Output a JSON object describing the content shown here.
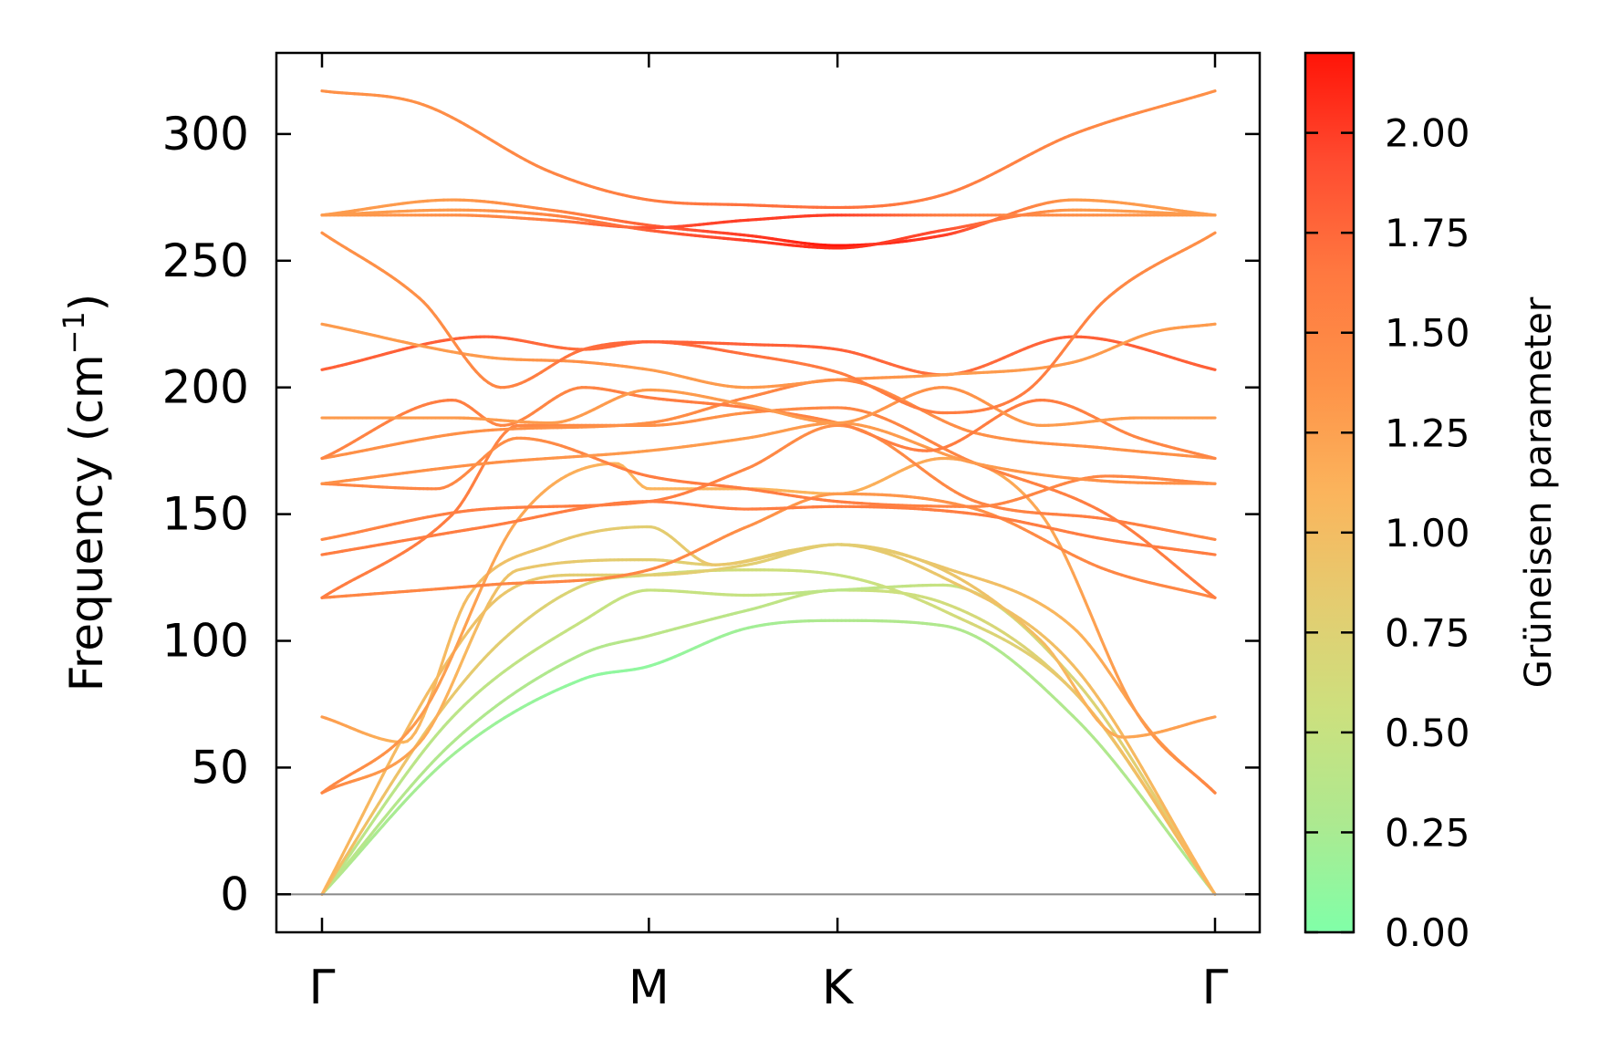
{
  "chart_data": {
    "type": "line",
    "title": "",
    "ylabel": "Frequency (cm⁻¹)",
    "ylabel_parts": {
      "main": "Frequency (cm",
      "sup": "−1",
      "close": ")"
    },
    "xlabel": "",
    "ylim": [
      -15,
      332
    ],
    "yticks": [
      0,
      50,
      100,
      150,
      200,
      250,
      300
    ],
    "kpath": [
      {
        "label": "Γ",
        "x": 0
      },
      {
        "label": "M",
        "x": 1
      },
      {
        "label": "K",
        "x": 1.577
      },
      {
        "label": "Γ",
        "x": 2.732
      }
    ],
    "zero_line": true,
    "colorbar": {
      "label": "Grüneisen parameter",
      "range": [
        0,
        2.2
      ],
      "ticks": [
        0.0,
        0.25,
        0.5,
        0.75,
        1.0,
        1.25,
        1.5,
        1.75,
        2.0
      ],
      "tick_labels": [
        "0.00",
        "0.25",
        "0.50",
        "0.75",
        "1.00",
        "1.25",
        "1.50",
        "1.75",
        "2.00"
      ],
      "colormap": [
        "#80ffa8",
        "#ade990",
        "#cce07e",
        "#e4cc70",
        "#fbb45c",
        "#fe9248",
        "#ff7840",
        "#ff4c30",
        "#ff1408"
      ]
    },
    "bands": [
      {
        "x": [
          0,
          0.4,
          0.8,
          1.0,
          1.3,
          1.577,
          1.9,
          2.3,
          2.732
        ],
        "y": [
          0,
          55,
          85,
          90,
          105,
          108,
          106,
          70,
          0
        ],
        "g": [
          0.3,
          0.2,
          0.1,
          0.1,
          0.2,
          0.3,
          0.3,
          0.3,
          0.3
        ]
      },
      {
        "x": [
          0,
          0.4,
          0.8,
          1.0,
          1.3,
          1.577,
          1.9,
          2.3,
          2.732
        ],
        "y": [
          0,
          60,
          95,
          102,
          112,
          120,
          115,
          80,
          0
        ],
        "g": [
          0.4,
          0.3,
          0.3,
          0.4,
          0.4,
          0.5,
          0.6,
          0.8,
          0.9
        ]
      },
      {
        "x": [
          0,
          0.4,
          0.8,
          1.0,
          1.3,
          1.577,
          1.9,
          2.3,
          2.732
        ],
        "y": [
          0,
          70,
          108,
          120,
          118,
          120,
          122,
          85,
          0
        ],
        "g": [
          0.4,
          0.4,
          0.5,
          0.5,
          0.5,
          0.4,
          0.5,
          0.7,
          0.9
        ]
      },
      {
        "x": [
          0,
          0.35,
          0.55,
          0.8,
          1.0,
          1.3,
          1.577,
          1.9,
          2.3,
          2.732
        ],
        "y": [
          0,
          70,
          100,
          122,
          126,
          128,
          126,
          112,
          80,
          0
        ],
        "g": [
          1.0,
          0.9,
          0.8,
          0.7,
          0.6,
          0.6,
          0.5,
          0.6,
          0.9,
          1.1
        ]
      },
      {
        "x": [
          0,
          0.35,
          0.55,
          0.8,
          1.0,
          1.3,
          1.577,
          1.9,
          2.3,
          2.732
        ],
        "y": [
          0,
          85,
          118,
          126,
          126,
          130,
          138,
          125,
          90,
          0
        ],
        "g": [
          1.1,
          1.0,
          0.9,
          0.8,
          0.8,
          0.8,
          0.8,
          0.9,
          1.0,
          1.1
        ]
      },
      {
        "x": [
          0,
          0.3,
          0.6,
          1.0,
          1.2,
          1.45,
          1.577,
          1.9,
          2.3,
          2.55,
          2.732
        ],
        "y": [
          40,
          60,
          128,
          132,
          130,
          136,
          138,
          129,
          105,
          62,
          40
        ],
        "g": [
          1.5,
          1.2,
          0.9,
          0.8,
          0.8,
          0.8,
          0.8,
          0.9,
          1.1,
          1.3,
          1.5
        ]
      },
      {
        "x": [
          0,
          0.25,
          0.45,
          0.7,
          1.0,
          1.2,
          1.577,
          1.9,
          2.2,
          2.45,
          2.732
        ],
        "y": [
          70,
          60,
          118,
          138,
          145,
          130,
          138,
          128,
          100,
          62,
          70
        ],
        "g": [
          1.3,
          1.1,
          1.0,
          0.9,
          0.8,
          0.9,
          0.8,
          0.9,
          1.0,
          1.2,
          1.3
        ]
      },
      {
        "x": [
          0,
          0.3,
          0.6,
          0.9,
          1.0,
          1.3,
          1.577,
          1.9,
          2.2,
          2.5,
          2.732
        ],
        "y": [
          40,
          70,
          148,
          170,
          160,
          160,
          158,
          172,
          150,
          70,
          40
        ],
        "g": [
          1.5,
          1.3,
          1.2,
          1.1,
          1.1,
          1.1,
          1.1,
          1.2,
          1.2,
          1.3,
          1.5
        ]
      },
      {
        "x": [
          0,
          0.5,
          1.0,
          1.3,
          1.577,
          2.0,
          2.4,
          2.732
        ],
        "y": [
          117,
          122,
          128,
          145,
          158,
          152,
          128,
          117
        ],
        "g": [
          1.5,
          1.5,
          1.5,
          1.4,
          1.3,
          1.4,
          1.5,
          1.5
        ]
      },
      {
        "x": [
          0,
          0.4,
          0.6,
          1.0,
          1.3,
          1.577,
          2.0,
          2.4,
          2.732
        ],
        "y": [
          117,
          150,
          185,
          185,
          190,
          192,
          170,
          150,
          117
        ],
        "g": [
          1.6,
          1.6,
          1.5,
          1.4,
          1.4,
          1.5,
          1.5,
          1.6,
          1.6
        ]
      },
      {
        "x": [
          0,
          0.5,
          1.0,
          1.3,
          1.577,
          2.0,
          2.4,
          2.732
        ],
        "y": [
          134,
          145,
          155,
          152,
          153,
          150,
          140,
          134
        ],
        "g": [
          1.6,
          1.6,
          1.6,
          1.6,
          1.6,
          1.6,
          1.6,
          1.6
        ]
      },
      {
        "x": [
          0,
          0.5,
          1.0,
          1.3,
          1.577,
          2.0,
          2.4,
          2.732
        ],
        "y": [
          140,
          152,
          155,
          168,
          185,
          155,
          148,
          140
        ],
        "g": [
          1.5,
          1.6,
          1.6,
          1.5,
          1.4,
          1.5,
          1.6,
          1.5
        ]
      },
      {
        "x": [
          0,
          0.35,
          0.6,
          1.0,
          1.3,
          1.577,
          2.0,
          2.4,
          2.732
        ],
        "y": [
          162,
          160,
          180,
          165,
          160,
          155,
          153,
          165,
          162
        ],
        "g": [
          1.5,
          1.5,
          1.4,
          1.6,
          1.6,
          1.6,
          1.5,
          1.5,
          1.5
        ]
      },
      {
        "x": [
          0,
          0.5,
          1.0,
          1.3,
          1.577,
          2.0,
          2.4,
          2.732
        ],
        "y": [
          162,
          170,
          175,
          180,
          186,
          170,
          163,
          162
        ],
        "g": [
          1.4,
          1.4,
          1.3,
          1.3,
          1.3,
          1.3,
          1.4,
          1.4
        ]
      },
      {
        "x": [
          0,
          0.5,
          1.0,
          1.3,
          1.577,
          2.0,
          2.4,
          2.732
        ],
        "y": [
          172,
          183,
          186,
          196,
          203,
          182,
          176,
          172
        ],
        "g": [
          1.4,
          1.4,
          1.4,
          1.5,
          1.5,
          1.4,
          1.4,
          1.4
        ]
      },
      {
        "x": [
          0,
          0.4,
          0.55,
          0.8,
          1.0,
          1.3,
          1.577,
          1.85,
          2.2,
          2.5,
          2.732
        ],
        "y": [
          172,
          195,
          185,
          200,
          196,
          192,
          186,
          175,
          195,
          180,
          172
        ],
        "g": [
          1.5,
          1.6,
          1.5,
          1.5,
          1.6,
          1.6,
          1.5,
          1.6,
          1.6,
          1.5,
          1.5
        ]
      },
      {
        "x": [
          0,
          0.4,
          0.7,
          1.0,
          1.3,
          1.577,
          1.9,
          2.2,
          2.5,
          2.732
        ],
        "y": [
          188,
          188,
          186,
          199,
          193,
          186,
          200,
          185,
          188,
          188
        ],
        "g": [
          1.3,
          1.3,
          1.3,
          1.3,
          1.3,
          1.3,
          1.4,
          1.3,
          1.3,
          1.3
        ]
      },
      {
        "x": [
          0,
          0.5,
          0.8,
          1.0,
          1.3,
          1.577,
          1.9,
          2.3,
          2.732
        ],
        "y": [
          207,
          220,
          215,
          218,
          217,
          215,
          205,
          220,
          207
        ],
        "g": [
          1.8,
          1.8,
          1.7,
          1.8,
          1.8,
          1.8,
          1.7,
          1.8,
          1.8
        ]
      },
      {
        "x": [
          0,
          0.5,
          0.8,
          1.0,
          1.3,
          1.577,
          1.9,
          2.3,
          2.55,
          2.732
        ],
        "y": [
          225,
          212,
          210,
          207,
          200,
          203,
          205,
          210,
          222,
          225
        ],
        "g": [
          1.3,
          1.3,
          1.4,
          1.3,
          1.3,
          1.4,
          1.3,
          1.3,
          1.3,
          1.3
        ]
      },
      {
        "x": [
          0,
          0.3,
          0.55,
          0.8,
          1.0,
          1.3,
          1.577,
          1.9,
          2.15,
          2.4,
          2.732
        ],
        "y": [
          261,
          235,
          200,
          215,
          218,
          213,
          206,
          190,
          198,
          235,
          261
        ],
        "g": [
          1.4,
          1.4,
          1.5,
          1.7,
          1.8,
          1.7,
          1.6,
          1.6,
          1.6,
          1.5,
          1.4
        ]
      },
      {
        "x": [
          0,
          0.4,
          0.7,
          1.0,
          1.3,
          1.577,
          1.9,
          2.3,
          2.732
        ],
        "y": [
          268,
          274,
          270,
          264,
          260,
          256,
          260,
          274,
          268
        ],
        "g": [
          1.3,
          1.3,
          1.5,
          1.8,
          2.0,
          2.2,
          2.0,
          1.3,
          1.3
        ]
      },
      {
        "x": [
          0,
          0.4,
          0.7,
          1.0,
          1.3,
          1.577,
          1.9,
          2.3,
          2.732
        ],
        "y": [
          268,
          268,
          266,
          263,
          266,
          268,
          268,
          268,
          268
        ],
        "g": [
          1.3,
          1.4,
          1.6,
          1.9,
          2.0,
          2.0,
          1.6,
          1.4,
          1.3
        ]
      },
      {
        "x": [
          0,
          0.4,
          0.7,
          1.0,
          1.3,
          1.577,
          1.9,
          2.3,
          2.732
        ],
        "y": [
          268,
          270,
          268,
          262,
          258,
          255,
          262,
          270,
          268
        ],
        "g": [
          1.3,
          1.3,
          1.5,
          1.8,
          2.0,
          2.1,
          1.9,
          1.3,
          1.3
        ]
      },
      {
        "x": [
          0,
          0.3,
          0.7,
          1.0,
          1.3,
          1.577,
          1.9,
          2.3,
          2.732
        ],
        "y": [
          317,
          312,
          285,
          274,
          272,
          271,
          276,
          300,
          317
        ],
        "g": [
          1.4,
          1.4,
          1.5,
          1.6,
          1.7,
          1.7,
          1.6,
          1.5,
          1.4
        ]
      }
    ]
  }
}
